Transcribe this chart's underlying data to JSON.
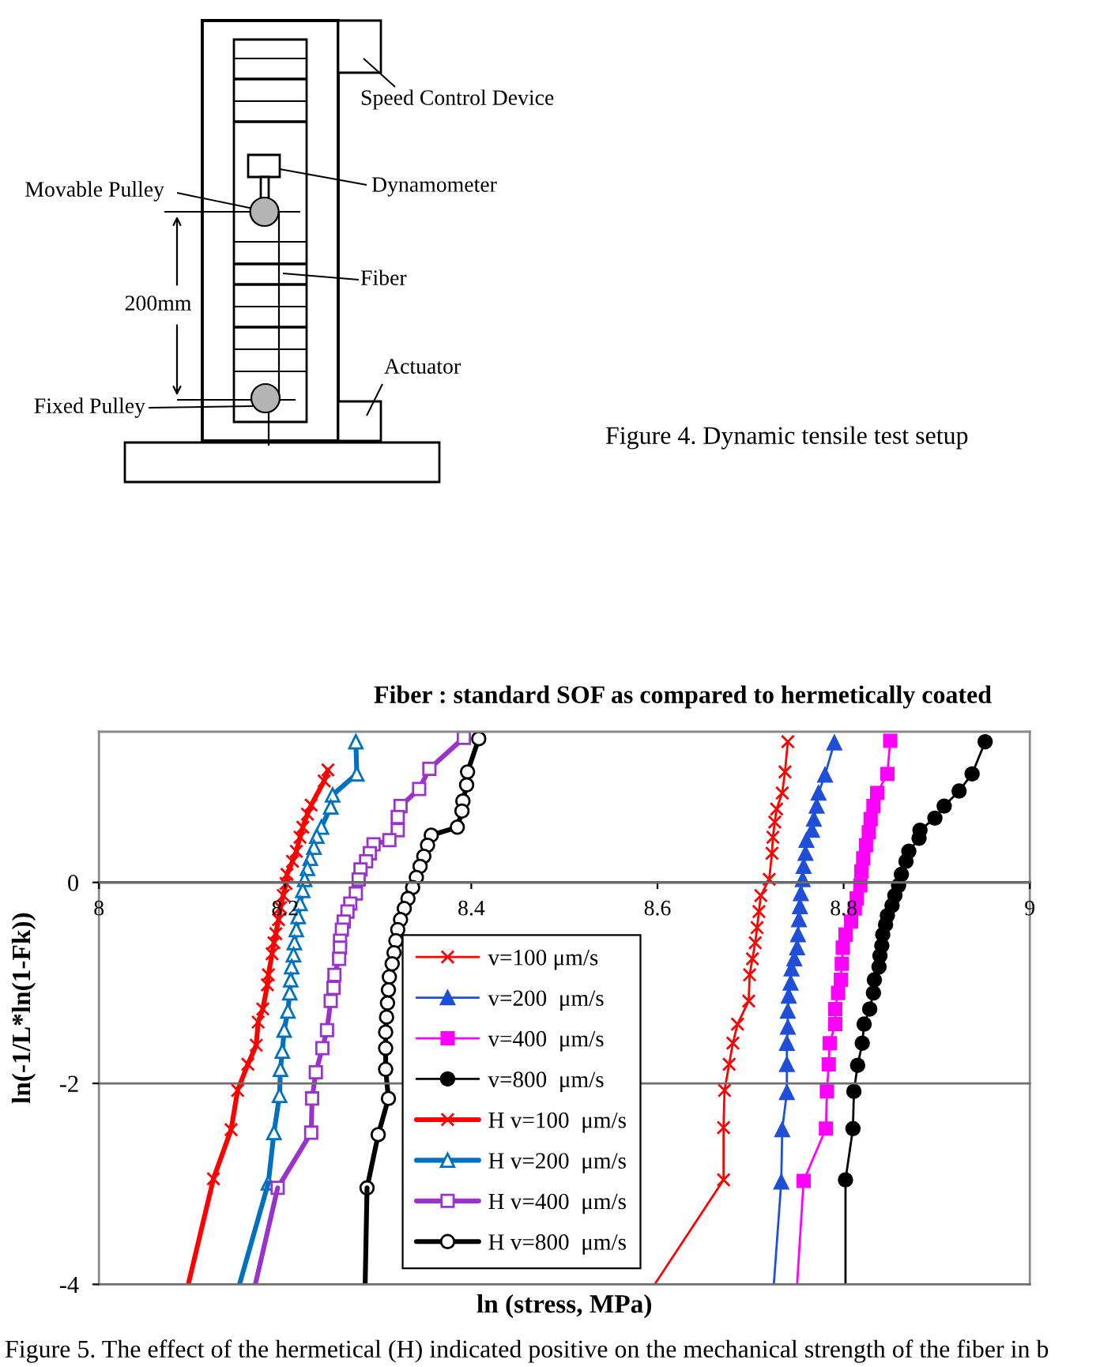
{
  "chart_data": [
    {
      "type": "other",
      "annotations": [
        "Speed Control Device",
        "Dynamometer",
        "Movable Pulley",
        "Fiber",
        "200mm",
        "Actuator",
        "Fixed Pulley",
        "Figure 4. Dynamic tensile test setup"
      ]
    },
    {
      "type": "line",
      "title": "Fiber : standard SOF as compared to hermetically coated",
      "xlabel": "ln (stress, MPa)",
      "ylabel": "ln(-1/L*ln(1-Fk))",
      "annotations": [
        "Figure 5. The effect of the hermetical (H) indicated positive on the mechanical strength of the fiber in b"
      ],
      "xlim": [
        8,
        9
      ],
      "xticks": [
        8,
        8.2,
        8.4,
        8.6,
        8.8,
        9
      ],
      "ylim": [
        -4,
        1.5
      ],
      "yticks": [
        -4,
        -2,
        0
      ],
      "grid": "y",
      "legend": "bottom",
      "series": [
        {
          "name": "v=100 μm/s",
          "color": "#ff0000",
          "marker": "cross",
          "x": [
            8.74,
            8.737,
            8.734,
            8.728,
            8.726,
            8.724,
            8.723,
            8.72,
            8.711,
            8.709,
            8.707,
            8.705,
            8.702,
            8.699,
            8.698,
            8.686,
            8.681,
            8.677,
            8.672,
            8.671,
            8.671
          ],
          "values": [
            1.4,
            1.1,
            0.89,
            0.73,
            0.6,
            0.45,
            0.29,
            0.03,
            -0.13,
            -0.29,
            -0.45,
            -0.6,
            -0.76,
            -0.92,
            -1.18,
            -1.41,
            -1.6,
            -1.81,
            -2.07,
            -2.44,
            -2.96
          ]
        },
        {
          "name": "v=200  μm/s",
          "color": "#1f4fd8",
          "marker": "triangle",
          "x": [
            8.79,
            8.78,
            8.773,
            8.771,
            8.768,
            8.766,
            8.76,
            8.759,
            8.757,
            8.756,
            8.754,
            8.753,
            8.752,
            8.751,
            8.75,
            8.747,
            8.744,
            8.743,
            8.741,
            8.74,
            8.74,
            8.739,
            8.739,
            8.739,
            8.734,
            8.733
          ],
          "values": [
            1.39,
            1.07,
            0.89,
            0.76,
            0.63,
            0.52,
            0.42,
            0.29,
            0.16,
            0.03,
            -0.11,
            -0.24,
            -0.37,
            -0.52,
            -0.65,
            -0.76,
            -0.86,
            -1.0,
            -1.13,
            -1.28,
            -1.44,
            -1.6,
            -1.81,
            -2.09,
            -2.46,
            -2.98
          ]
        },
        {
          "name": "v=400  μm/s",
          "color": "#ff00ff",
          "marker": "square",
          "x": [
            8.85,
            8.847,
            8.836,
            8.832,
            8.829,
            8.827,
            8.824,
            8.821,
            8.819,
            8.818,
            8.814,
            8.812,
            8.808,
            8.802,
            8.799,
            8.798,
            8.797,
            8.794,
            8.791,
            8.791,
            8.785,
            8.784,
            8.782,
            8.781,
            8.757
          ],
          "values": [
            1.41,
            1.08,
            0.89,
            0.76,
            0.63,
            0.5,
            0.37,
            0.24,
            0.11,
            -0.03,
            -0.16,
            -0.26,
            -0.39,
            -0.52,
            -0.65,
            -0.81,
            -0.97,
            -1.1,
            -1.26,
            -1.41,
            -1.6,
            -1.81,
            -2.08,
            -2.45,
            -2.97
          ]
        },
        {
          "name": "v=800  μm/s",
          "color": "#000000",
          "marker": "circle",
          "x": [
            8.952,
            8.938,
            8.924,
            8.908,
            8.898,
            8.882,
            8.881,
            8.87,
            8.867,
            8.862,
            8.859,
            8.855,
            8.852,
            8.847,
            8.845,
            8.842,
            8.841,
            8.839,
            8.838,
            8.833,
            8.832,
            8.828,
            8.822,
            8.82,
            8.815,
            8.811,
            8.81,
            8.802
          ],
          "values": [
            1.4,
            1.08,
            0.91,
            0.76,
            0.64,
            0.52,
            0.44,
            0.31,
            0.21,
            0.08,
            -0.03,
            -0.13,
            -0.23,
            -0.33,
            -0.42,
            -0.52,
            -0.63,
            -0.73,
            -0.84,
            -0.97,
            -1.1,
            -1.26,
            -1.41,
            -1.6,
            -1.82,
            -2.08,
            -2.45,
            -2.96
          ]
        },
        {
          "name": "H v=100  μm/s",
          "color": "#ff0000",
          "marker": "cross",
          "x": [
            8.246,
            8.242,
            8.228,
            8.224,
            8.219,
            8.216,
            8.212,
            8.208,
            8.202,
            8.201,
            8.198,
            8.195,
            8.193,
            8.19,
            8.188,
            8.186,
            8.182,
            8.181,
            8.176,
            8.171,
            8.169,
            8.16,
            8.149,
            8.142,
            8.123
          ],
          "values": [
            1.12,
            1.01,
            0.77,
            0.68,
            0.55,
            0.45,
            0.31,
            0.21,
            0.08,
            -0.01,
            -0.13,
            -0.25,
            -0.37,
            -0.51,
            -0.6,
            -0.71,
            -0.92,
            -1.02,
            -1.26,
            -1.39,
            -1.62,
            -1.81,
            -2.07,
            -2.46,
            -2.95
          ]
        },
        {
          "name": "H v=200  μm/s",
          "color": "#0070c0",
          "marker": "triangle",
          "x": [
            8.276,
            8.277,
            8.251,
            8.249,
            8.239,
            8.234,
            8.231,
            8.227,
            8.224,
            8.221,
            8.219,
            8.216,
            8.214,
            8.212,
            8.21,
            8.209,
            8.207,
            8.206,
            8.205,
            8.203,
            8.199,
            8.197,
            8.195,
            8.194,
            8.188,
            8.182
          ],
          "values": [
            1.4,
            1.08,
            0.87,
            0.75,
            0.55,
            0.46,
            0.35,
            0.24,
            0.14,
            0.03,
            -0.08,
            -0.21,
            -0.34,
            -0.47,
            -0.6,
            -0.72,
            -0.84,
            -0.97,
            -1.1,
            -1.28,
            -1.47,
            -1.68,
            -1.86,
            -2.12,
            -2.49,
            -2.99
          ]
        },
        {
          "name": "H v=400  μm/s",
          "color": "#9933cc",
          "marker": "square",
          "x": [
            8.392,
            8.355,
            8.344,
            8.324,
            8.321,
            8.321,
            8.312,
            8.295,
            8.291,
            8.287,
            8.281,
            8.279,
            8.276,
            8.27,
            8.267,
            8.263,
            8.261,
            8.259,
            8.259,
            8.258,
            8.253,
            8.252,
            8.249,
            8.245,
            8.24,
            8.233,
            8.229,
            8.228,
            8.192
          ],
          "values": [
            1.44,
            1.13,
            0.93,
            0.76,
            0.65,
            0.52,
            0.42,
            0.38,
            0.29,
            0.21,
            0.13,
            0.03,
            -0.11,
            -0.21,
            -0.29,
            -0.39,
            -0.47,
            -0.58,
            -0.65,
            -0.76,
            -0.92,
            -1.05,
            -1.18,
            -1.47,
            -1.65,
            -1.89,
            -2.15,
            -2.49,
            -3.04
          ]
        },
        {
          "name": "H v=800  μm/s",
          "color": "#000000",
          "marker": "circle",
          "x": [
            8.408,
            8.396,
            8.395,
            8.391,
            8.39,
            8.385,
            8.357,
            8.353,
            8.349,
            8.345,
            8.341,
            8.337,
            8.332,
            8.328,
            8.324,
            8.321,
            8.319,
            8.317,
            8.315,
            8.312,
            8.311,
            8.31,
            8.309,
            8.308,
            8.308,
            8.308,
            8.311,
            8.3,
            8.288
          ],
          "values": [
            1.43,
            1.1,
            0.97,
            0.81,
            0.71,
            0.55,
            0.47,
            0.37,
            0.26,
            0.16,
            0.05,
            -0.05,
            -0.16,
            -0.26,
            -0.37,
            -0.47,
            -0.58,
            -0.7,
            -0.81,
            -0.94,
            -1.07,
            -1.2,
            -1.34,
            -1.49,
            -1.65,
            -1.86,
            -2.15,
            -2.51,
            -3.04
          ]
        },
        {
          "color": "#ff0000",
          "marker": "none",
          "x": [
            8.671,
            8.597
          ],
          "values": [
            -2.96,
            -4
          ]
        },
        {
          "color": "#1f4fd8",
          "marker": "none",
          "x": [
            8.733,
            8.725
          ],
          "values": [
            -2.98,
            -4
          ]
        },
        {
          "color": "#ff00ff",
          "marker": "none",
          "x": [
            8.757,
            8.75
          ],
          "values": [
            -2.97,
            -4
          ]
        },
        {
          "color": "#000000",
          "marker": "none",
          "x": [
            8.802,
            8.802
          ],
          "values": [
            -2.96,
            -4
          ]
        },
        {
          "color": "#ff0000",
          "marker": "none",
          "x": [
            8.123,
            8.096
          ],
          "values": [
            -2.95,
            -4
          ]
        },
        {
          "color": "#0070c0",
          "marker": "none",
          "x": [
            8.182,
            8.151
          ],
          "values": [
            -2.99,
            -4
          ]
        },
        {
          "color": "#9933cc",
          "marker": "none",
          "x": [
            8.192,
            8.168
          ],
          "values": [
            -3.04,
            -4
          ]
        },
        {
          "color": "#000000",
          "marker": "none",
          "x": [
            8.288,
            8.286
          ],
          "values": [
            -3.04,
            -4
          ]
        }
      ]
    }
  ]
}
